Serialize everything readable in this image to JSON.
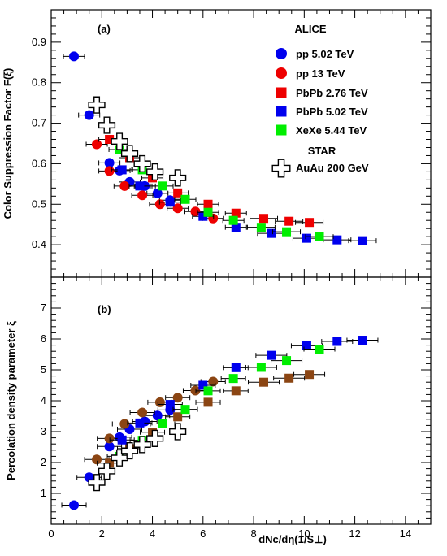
{
  "chart_data": [
    {
      "type": "scatter",
      "panel_label": "(a)",
      "ylabel": "Color Suppression Factor F(ξ)",
      "xlim": [
        0,
        15
      ],
      "ylim": [
        0.32,
        0.98
      ],
      "y_ticks": [
        "0.4",
        "0.5",
        "0.6",
        "0.7",
        "0.8",
        "0.9"
      ],
      "y_tick_values": [
        0.4,
        0.5,
        0.6,
        0.7,
        0.8,
        0.9
      ],
      "legend": {
        "placement": "top-right",
        "group_titles": [
          "ALICE",
          "STAR"
        ],
        "entries": [
          "pp 5.02 TeV",
          "pp 13 TeV",
          "PbPb 2.76 TeV",
          "PbPb 5.02 TeV",
          "XeXe 5.44 TeV",
          "AuAu 200 GeV"
        ]
      },
      "series": [
        {
          "name": "pp 5.02 TeV",
          "marker": "circle",
          "color": "#0000ee",
          "points": [
            [
              0.9,
              0.865
            ],
            [
              1.5,
              0.72
            ],
            [
              2.3,
              0.602
            ],
            [
              2.7,
              0.583
            ],
            [
              3.1,
              0.555
            ],
            [
              3.7,
              0.545
            ],
            [
              4.2,
              0.527
            ],
            [
              4.7,
              0.51
            ]
          ]
        },
        {
          "name": "pp 13 TeV",
          "marker": "circle",
          "color": "#ee0000",
          "points": [
            [
              1.8,
              0.648
            ],
            [
              2.3,
              0.582
            ],
            [
              2.9,
              0.545
            ],
            [
              3.6,
              0.522
            ],
            [
              4.3,
              0.5
            ],
            [
              5.0,
              0.49
            ],
            [
              5.7,
              0.482
            ],
            [
              6.4,
              0.465
            ]
          ]
        },
        {
          "name": "PbPb 2.76 TeV",
          "marker": "square",
          "color": "#ee0000",
          "points": [
            [
              2.3,
              0.66
            ],
            [
              3.1,
              0.615
            ],
            [
              4.0,
              0.565
            ],
            [
              5.0,
              0.528
            ],
            [
              6.2,
              0.5
            ],
            [
              7.3,
              0.478
            ],
            [
              8.4,
              0.465
            ],
            [
              9.4,
              0.458
            ],
            [
              10.2,
              0.455
            ]
          ]
        },
        {
          "name": "PbPb 5.02 TeV",
          "marker": "square",
          "color": "#0000ee",
          "points": [
            [
              2.8,
              0.585
            ],
            [
              3.5,
              0.545
            ],
            [
              4.7,
              0.505
            ],
            [
              6.0,
              0.47
            ],
            [
              7.3,
              0.443
            ],
            [
              8.7,
              0.428
            ],
            [
              10.1,
              0.416
            ],
            [
              11.3,
              0.412
            ],
            [
              12.3,
              0.41
            ]
          ]
        },
        {
          "name": "XeXe 5.44 TeV",
          "marker": "square",
          "color": "#00ee00",
          "points": [
            [
              2.7,
              0.635
            ],
            [
              3.6,
              0.585
            ],
            [
              4.4,
              0.545
            ],
            [
              5.3,
              0.512
            ],
            [
              6.2,
              0.48
            ],
            [
              7.2,
              0.46
            ],
            [
              8.3,
              0.443
            ],
            [
              9.3,
              0.432
            ],
            [
              10.6,
              0.42
            ]
          ]
        },
        {
          "name": "AuAu 200 GeV",
          "marker": "open-cross",
          "color": "#000000",
          "points": [
            [
              1.8,
              0.745
            ],
            [
              2.2,
              0.695
            ],
            [
              2.7,
              0.655
            ],
            [
              3.1,
              0.625
            ],
            [
              3.6,
              0.6
            ],
            [
              4.1,
              0.58
            ],
            [
              5.0,
              0.565
            ]
          ]
        }
      ]
    },
    {
      "type": "scatter",
      "panel_label": "(b)",
      "ylabel": "Percolation density parameter ξ",
      "xlabel": "dNc/dη(1/S⊥)",
      "xlim": [
        0,
        15
      ],
      "ylim": [
        0,
        8
      ],
      "x_ticks": [
        "0",
        "2",
        "4",
        "6",
        "8",
        "10",
        "12",
        "14"
      ],
      "x_tick_values": [
        0,
        2,
        4,
        6,
        8,
        10,
        12,
        14
      ],
      "y_ticks": [
        "1",
        "2",
        "3",
        "4",
        "5",
        "6",
        "7"
      ],
      "y_tick_values": [
        1,
        2,
        3,
        4,
        5,
        6,
        7
      ],
      "series": [
        {
          "name": "pp 5.02 TeV",
          "marker": "circle",
          "color": "#0000ee",
          "points": [
            [
              0.9,
              0.62
            ],
            [
              1.5,
              1.52
            ],
            [
              2.3,
              2.52
            ],
            [
              2.7,
              2.82
            ],
            [
              3.1,
              3.08
            ],
            [
              3.7,
              3.33
            ],
            [
              4.2,
              3.52
            ],
            [
              4.7,
              3.7
            ]
          ]
        },
        {
          "name": "pp 13 TeV",
          "marker": "circle",
          "color": "#8b4513",
          "points": [
            [
              1.8,
              2.1
            ],
            [
              2.3,
              2.78
            ],
            [
              2.9,
              3.25
            ],
            [
              3.6,
              3.62
            ],
            [
              4.3,
              3.95
            ],
            [
              5.0,
              4.1
            ],
            [
              5.7,
              4.33
            ],
            [
              6.4,
              4.62
            ]
          ]
        },
        {
          "name": "PbPb 2.76 TeV",
          "marker": "square",
          "color": "#8b4513",
          "points": [
            [
              2.3,
              1.98
            ],
            [
              3.1,
              2.45
            ],
            [
              4.0,
              2.98
            ],
            [
              5.0,
              3.48
            ],
            [
              6.2,
              3.95
            ],
            [
              7.3,
              4.32
            ],
            [
              8.4,
              4.6
            ],
            [
              9.4,
              4.73
            ],
            [
              10.2,
              4.85
            ]
          ]
        },
        {
          "name": "PbPb 5.02 TeV",
          "marker": "square",
          "color": "#0000ee",
          "points": [
            [
              2.8,
              2.73
            ],
            [
              3.5,
              3.28
            ],
            [
              4.7,
              3.88
            ],
            [
              6.0,
              4.5
            ],
            [
              7.3,
              5.07
            ],
            [
              8.7,
              5.47
            ],
            [
              10.1,
              5.78
            ],
            [
              11.3,
              5.92
            ],
            [
              12.3,
              5.96
            ]
          ]
        },
        {
          "name": "XeXe 5.44 TeV",
          "marker": "square",
          "color": "#00ee00",
          "points": [
            [
              2.7,
              2.2
            ],
            [
              3.6,
              2.72
            ],
            [
              4.4,
              3.25
            ],
            [
              5.3,
              3.72
            ],
            [
              6.2,
              4.32
            ],
            [
              7.2,
              4.72
            ],
            [
              8.3,
              5.08
            ],
            [
              9.3,
              5.3
            ],
            [
              10.6,
              5.67
            ]
          ]
        },
        {
          "name": "AuAu 200 GeV",
          "marker": "open-cross",
          "color": "#000000",
          "points": [
            [
              1.8,
              1.35
            ],
            [
              2.2,
              1.72
            ],
            [
              2.7,
              2.15
            ],
            [
              3.1,
              2.38
            ],
            [
              3.6,
              2.58
            ],
            [
              4.1,
              2.78
            ],
            [
              5.0,
              3.0
            ]
          ]
        }
      ]
    }
  ]
}
